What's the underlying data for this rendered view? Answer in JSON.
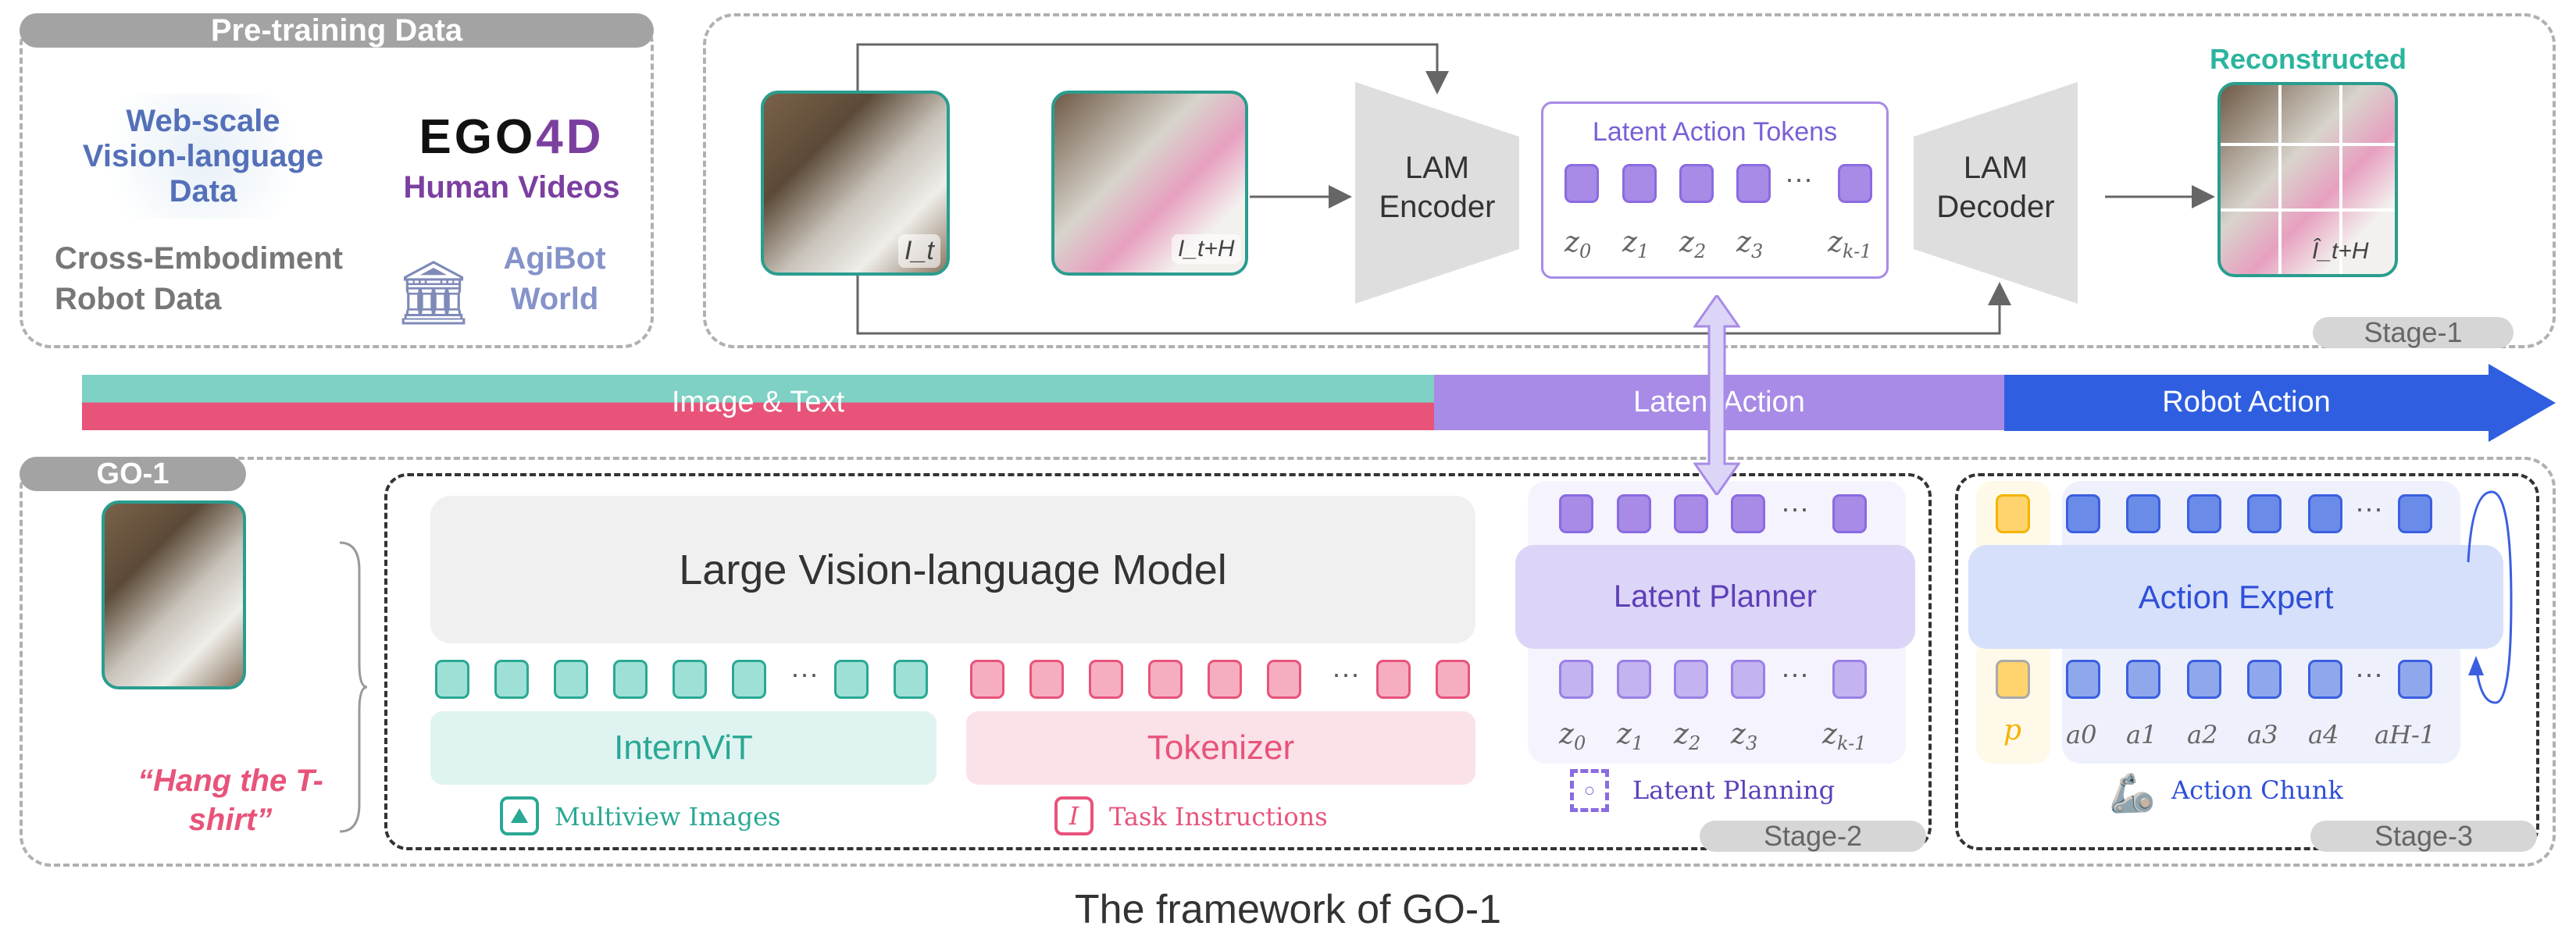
{
  "pretraining": {
    "title": "Pre-training Data",
    "web": "Web-scale Vision-language Data",
    "ego_logo": "EGO4D",
    "human": "Human Videos",
    "cross": "Cross-Embodiment Robot Data",
    "agibot": "AgiBot World"
  },
  "stage1": {
    "frame_t": "I_t",
    "frame_tH": "I_t+H",
    "encoder": "LAM Encoder",
    "tokens_title": "Latent Action Tokens",
    "decoder": "LAM Decoder",
    "reconstructed": "Reconstructed",
    "recon_label": "Î_t+H",
    "stage": "Stage-1",
    "z_labels": [
      "z0",
      "z1",
      "z2",
      "z3",
      "zk-1"
    ]
  },
  "band": {
    "image_text": "Image & Text",
    "latent": "Latent Action",
    "robot": "Robot Action"
  },
  "go1": {
    "title": "GO-1",
    "instruction": "“Hang the T-shirt”",
    "vlm": "Large Vision-language Model",
    "vit": "InternViT",
    "tokenizer": "Tokenizer",
    "multiview": "Multiview Images",
    "task": "Task Instructions",
    "planner": "Latent Planner",
    "planning": "Latent Planning",
    "stage2": "Stage-2",
    "expert": "Action Expert",
    "chunk": "Action Chunk",
    "stage3": "Stage-3",
    "p": "p",
    "a_labels": [
      "a0",
      "a1",
      "a2",
      "a3",
      "a4",
      "aH-1"
    ]
  },
  "caption": "The framework of GO-1",
  "colors": {
    "teal": "#2a9d8f",
    "pink": "#e8537a",
    "purple": "#a78be6",
    "blue": "#3b5fe0",
    "gold": "#ffd36e"
  }
}
